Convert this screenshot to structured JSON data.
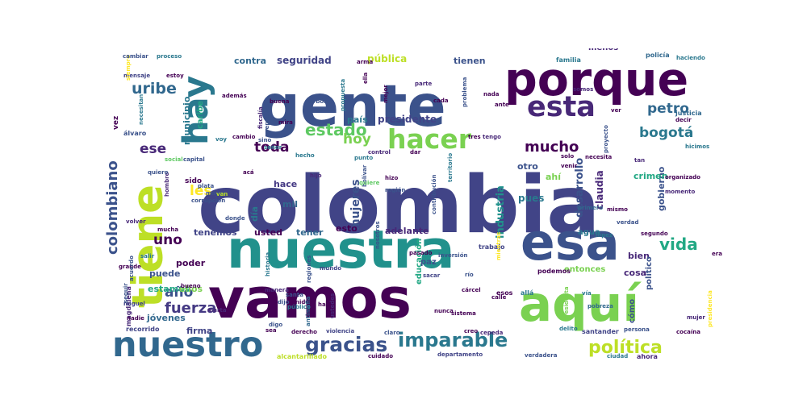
{
  "chart_data": {
    "type": "wordcloud",
    "title": "",
    "palette": "viridis",
    "words": [
      {
        "text": "colombia",
        "weight": 100,
        "color": "#414487"
      },
      {
        "text": "gente",
        "weight": 72,
        "color": "#3b528b"
      },
      {
        "text": "vamos",
        "weight": 70,
        "color": "#440154"
      },
      {
        "text": "aquí",
        "weight": 62,
        "color": "#7ad151"
      },
      {
        "text": "nuestra",
        "weight": 66,
        "color": "#21918c"
      },
      {
        "text": "esa",
        "weight": 64,
        "color": "#3b528b"
      },
      {
        "text": "porque",
        "weight": 58,
        "color": "#440154"
      },
      {
        "text": "tiene",
        "weight": 54,
        "color": "#bddf26"
      },
      {
        "text": "hay",
        "weight": 44,
        "color": "#2a788e"
      },
      {
        "text": "nuestro",
        "weight": 44,
        "color": "#31688e"
      },
      {
        "text": "esta",
        "weight": 36,
        "color": "#482878"
      },
      {
        "text": "hacer",
        "weight": 34,
        "color": "#7ad151"
      },
      {
        "text": "gracias",
        "weight": 26,
        "color": "#3b528b"
      },
      {
        "text": "imparable",
        "weight": 24,
        "color": "#2a788e"
      },
      {
        "text": "política",
        "weight": 22,
        "color": "#bddf26"
      },
      {
        "text": "estado",
        "weight": 20,
        "color": "#5ec962"
      },
      {
        "text": "vida",
        "weight": 20,
        "color": "#22a884"
      },
      {
        "text": "uribe",
        "weight": 19,
        "color": "#31688e"
      },
      {
        "text": "colombiano",
        "weight": 18,
        "color": "#3b528b"
      },
      {
        "text": "mucho",
        "weight": 18,
        "color": "#440154"
      },
      {
        "text": "bogotá",
        "weight": 17,
        "color": "#2a788e"
      },
      {
        "text": "petro",
        "weight": 17,
        "color": "#31688e"
      },
      {
        "text": "hoy",
        "weight": 17,
        "color": "#7ad151"
      },
      {
        "text": "toda",
        "weight": 17,
        "color": "#440154"
      },
      {
        "text": "ese",
        "weight": 17,
        "color": "#482878"
      },
      {
        "text": "fuerza",
        "weight": 18,
        "color": "#443983"
      },
      {
        "text": "año",
        "weight": 17,
        "color": "#3b528b"
      },
      {
        "text": "uno",
        "weight": 17,
        "color": "#440154"
      },
      {
        "text": "les",
        "weight": 17,
        "color": "#fde725"
      },
      {
        "text": "mujeres",
        "weight": 14,
        "color": "#3b528b"
      },
      {
        "text": "industria",
        "weight": 13,
        "color": "#21918c"
      },
      {
        "text": "desarrollo",
        "weight": 13,
        "color": "#3b528b"
      },
      {
        "text": "claudia",
        "weight": 12,
        "color": "#482878"
      },
      {
        "text": "gobierno",
        "weight": 11,
        "color": "#3b528b"
      },
      {
        "text": "crimen",
        "weight": 11,
        "color": "#22a884"
      },
      {
        "text": "seguridad",
        "weight": 12,
        "color": "#414487"
      },
      {
        "text": "pública",
        "weight": 12,
        "color": "#bddf26"
      },
      {
        "text": "contra",
        "weight": 11,
        "color": "#31688e"
      },
      {
        "text": "tienen",
        "weight": 11,
        "color": "#3b528b"
      },
      {
        "text": "menos",
        "weight": 10,
        "color": "#482878"
      },
      {
        "text": "presidente",
        "weight": 12,
        "color": "#414487"
      },
      {
        "text": "país",
        "weight": 11,
        "color": "#2a788e"
      },
      {
        "text": "municipio",
        "weight": 11,
        "color": "#2a788e"
      },
      {
        "text": "caribe",
        "weight": 10,
        "color": "#22a884"
      },
      {
        "text": "otro",
        "weight": 11,
        "color": "#3b528b"
      },
      {
        "text": "ahí",
        "weight": 11,
        "color": "#7ad151"
      },
      {
        "text": "pues",
        "weight": 12,
        "color": "#2a788e"
      },
      {
        "text": "hace",
        "weight": 11,
        "color": "#443983"
      },
      {
        "text": "mil",
        "weight": 11,
        "color": "#31688e"
      },
      {
        "text": "día",
        "weight": 11,
        "color": "#2a788e"
      },
      {
        "text": "tenemos",
        "weight": 11,
        "color": "#414487"
      },
      {
        "text": "usted",
        "weight": 11,
        "color": "#440154"
      },
      {
        "text": "tener",
        "weight": 11,
        "color": "#31688e"
      },
      {
        "text": "esto",
        "weight": 11,
        "color": "#440154"
      },
      {
        "text": "adelante",
        "weight": 11,
        "color": "#482878"
      },
      {
        "text": "agua",
        "weight": 10,
        "color": "#2a788e"
      },
      {
        "text": "bien",
        "weight": 11,
        "color": "#482878"
      },
      {
        "text": "político",
        "weight": 10,
        "color": "#3b528b"
      },
      {
        "text": "cosa",
        "weight": 11,
        "color": "#482878"
      },
      {
        "text": "entonces",
        "weight": 10,
        "color": "#7ad151"
      },
      {
        "text": "cómo",
        "weight": 10,
        "color": "#3b528b"
      },
      {
        "text": "poder",
        "weight": 11,
        "color": "#440154"
      },
      {
        "text": "puede",
        "weight": 11,
        "color": "#3b528b"
      },
      {
        "text": "estamos",
        "weight": 11,
        "color": "#22a884"
      },
      {
        "text": "ellos",
        "weight": 11,
        "color": "#7ad151"
      },
      {
        "text": "jóvenes",
        "weight": 11,
        "color": "#31688e"
      },
      {
        "text": "firma",
        "weight": 11,
        "color": "#414487"
      },
      {
        "text": "recorrido",
        "weight": 8,
        "color": "#414487"
      },
      {
        "text": "paz",
        "weight": 10,
        "color": "#3b528b"
      },
      {
        "text": "educación",
        "weight": 10,
        "color": "#22a884"
      },
      {
        "text": "sido",
        "weight": 9,
        "color": "#440154"
      },
      {
        "text": "magdalena",
        "weight": 8,
        "color": "#482878"
      },
      {
        "text": "vez",
        "weight": 9,
        "color": "#440154"
      },
      {
        "text": "álvaro",
        "weight": 8,
        "color": "#3b528b"
      },
      {
        "text": "mensaje",
        "weight": 7,
        "color": "#414487"
      },
      {
        "text": "siempre",
        "weight": 7,
        "color": "#fde725"
      },
      {
        "text": "necesitan",
        "weight": 7,
        "color": "#2a788e"
      },
      {
        "text": "cambiar",
        "weight": 7,
        "color": "#3b528b"
      },
      {
        "text": "proceso",
        "weight": 7,
        "color": "#2a788e"
      },
      {
        "text": "estoy",
        "weight": 7,
        "color": "#440154"
      },
      {
        "text": "además",
        "weight": 7,
        "color": "#440154"
      },
      {
        "text": "familia",
        "weight": 8,
        "color": "#2a788e"
      },
      {
        "text": "policía",
        "weight": 8,
        "color": "#31688e"
      },
      {
        "text": "haciendo",
        "weight": 7,
        "color": "#2a788e"
      },
      {
        "text": "justicia",
        "weight": 8,
        "color": "#31688e"
      },
      {
        "text": "decir",
        "weight": 7,
        "color": "#440154"
      },
      {
        "text": "ver",
        "weight": 7,
        "color": "#440154"
      },
      {
        "text": "hicimos",
        "weight": 7,
        "color": "#2a788e"
      },
      {
        "text": "organizado",
        "weight": 7,
        "color": "#440154"
      },
      {
        "text": "momento",
        "weight": 7,
        "color": "#482878"
      },
      {
        "text": "primero",
        "weight": 7,
        "color": "#31688e"
      },
      {
        "text": "mismo",
        "weight": 7,
        "color": "#440154"
      },
      {
        "text": "segundo",
        "weight": 7,
        "color": "#440154"
      },
      {
        "text": "santander",
        "weight": 8,
        "color": "#414487"
      },
      {
        "text": "persona",
        "weight": 7,
        "color": "#3b528b"
      },
      {
        "text": "cocaína",
        "weight": 7,
        "color": "#440154"
      },
      {
        "text": "ciudad",
        "weight": 7,
        "color": "#2a788e"
      },
      {
        "text": "ahora",
        "weight": 8,
        "color": "#482878"
      },
      {
        "text": "verdadera",
        "weight": 7,
        "color": "#3b528b"
      },
      {
        "text": "departamento",
        "weight": 7,
        "color": "#414487"
      },
      {
        "text": "cuidado",
        "weight": 7,
        "color": "#440154"
      },
      {
        "text": "alcantarillado",
        "weight": 8,
        "color": "#bddf26"
      },
      {
        "text": "cepeda",
        "weight": 7,
        "color": "#482878"
      },
      {
        "text": "creo",
        "weight": 7,
        "color": "#440154"
      },
      {
        "text": "claro",
        "weight": 7,
        "color": "#3b528b"
      },
      {
        "text": "violencia",
        "weight": 7,
        "color": "#414487"
      },
      {
        "text": "derecho",
        "weight": 7,
        "color": "#440154"
      },
      {
        "text": "sistema",
        "weight": 7,
        "color": "#440154"
      },
      {
        "text": "esos",
        "weight": 8,
        "color": "#440154"
      },
      {
        "text": "allá",
        "weight": 8,
        "color": "#2a788e"
      },
      {
        "text": "podemos",
        "weight": 8,
        "color": "#440154"
      },
      {
        "text": "vía",
        "weight": 7,
        "color": "#2a788e"
      },
      {
        "text": "pobreza",
        "weight": 7,
        "color": "#31688e"
      },
      {
        "text": "delito",
        "weight": 7,
        "color": "#2a788e"
      },
      {
        "text": "mujer",
        "weight": 7,
        "color": "#482878"
      },
      {
        "text": "trabajo",
        "weight": 8,
        "color": "#414487"
      },
      {
        "text": "inversión",
        "weight": 7,
        "color": "#3b528b"
      },
      {
        "text": "pasado",
        "weight": 7,
        "color": "#440154"
      },
      {
        "text": "sacar",
        "weight": 7,
        "color": "#414487"
      },
      {
        "text": "río",
        "weight": 7,
        "color": "#3b528b"
      },
      {
        "text": "cárcel",
        "weight": 7,
        "color": "#440154"
      },
      {
        "text": "calle",
        "weight": 7,
        "color": "#440154"
      },
      {
        "text": "mundo",
        "weight": 7,
        "color": "#414487"
      },
      {
        "text": "nosotros",
        "weight": 7,
        "color": "#3b528b"
      },
      {
        "text": "regiones",
        "weight": 7,
        "color": "#3b528b"
      },
      {
        "text": "manera",
        "weight": 7,
        "color": "#482878"
      },
      {
        "text": "bueno",
        "weight": 7,
        "color": "#440154"
      },
      {
        "text": "miguel",
        "weight": 7,
        "color": "#414487"
      },
      {
        "text": "marta",
        "weight": 7,
        "color": "#482878"
      },
      {
        "text": "nadie",
        "weight": 7,
        "color": "#440154"
      },
      {
        "text": "mucha",
        "weight": 7,
        "color": "#440154"
      },
      {
        "text": "volver",
        "weight": 7,
        "color": "#482878"
      },
      {
        "text": "donde",
        "weight": 7,
        "color": "#3b528b"
      },
      {
        "text": "corrupción",
        "weight": 7,
        "color": "#3b528b"
      },
      {
        "text": "mayor",
        "weight": 7,
        "color": "#3b528b"
      },
      {
        "text": "plata",
        "weight": 7,
        "color": "#3b528b"
      },
      {
        "text": "hombre",
        "weight": 7,
        "color": "#482878"
      },
      {
        "text": "quiero",
        "weight": 7,
        "color": "#3b528b"
      },
      {
        "text": "acá",
        "weight": 7,
        "color": "#440154"
      },
      {
        "text": "señor",
        "weight": 7,
        "color": "#2a788e"
      },
      {
        "text": "hijo",
        "weight": 7,
        "color": "#482878"
      },
      {
        "text": "hecho",
        "weight": 7,
        "color": "#2a788e"
      },
      {
        "text": "capital",
        "weight": 7,
        "color": "#3b528b"
      },
      {
        "text": "social",
        "weight": 7,
        "color": "#5ec962"
      },
      {
        "text": "región",
        "weight": 7,
        "color": "#3b528b"
      },
      {
        "text": "bolívar",
        "weight": 7,
        "color": "#3b528b"
      },
      {
        "text": "hizo",
        "weight": 7,
        "color": "#440154"
      },
      {
        "text": "quiere",
        "weight": 7,
        "color": "#5ec962"
      },
      {
        "text": "control",
        "weight": 7,
        "color": "#482878"
      },
      {
        "text": "dar",
        "weight": 7,
        "color": "#440154"
      },
      {
        "text": "punto",
        "weight": 7,
        "color": "#2a788e"
      },
      {
        "text": "tres",
        "weight": 7,
        "color": "#440154"
      },
      {
        "text": "tengo",
        "weight": 7,
        "color": "#482878"
      },
      {
        "text": "solo",
        "weight": 7,
        "color": "#440154"
      },
      {
        "text": "venir",
        "weight": 7,
        "color": "#440154"
      },
      {
        "text": "verdad",
        "weight": 7,
        "color": "#3b528b"
      },
      {
        "text": "tan",
        "weight": 7,
        "color": "#482878"
      },
      {
        "text": "buena",
        "weight": 7,
        "color": "#440154"
      },
      {
        "text": "carbón",
        "weight": 7,
        "color": "#3b528b"
      },
      {
        "text": "cada",
        "weight": 7,
        "color": "#440154"
      },
      {
        "text": "ante",
        "weight": 7,
        "color": "#440154"
      },
      {
        "text": "nada",
        "weight": 7,
        "color": "#440154"
      },
      {
        "text": "somos",
        "weight": 7,
        "color": "#482878"
      },
      {
        "text": "parte",
        "weight": 7,
        "color": "#482878"
      },
      {
        "text": "mira",
        "weight": 7,
        "color": "#440154"
      },
      {
        "text": "sino",
        "weight": 7,
        "color": "#3b528b"
      },
      {
        "text": "cambio",
        "weight": 7,
        "color": "#440154"
      },
      {
        "text": "voy",
        "weight": 7,
        "color": "#2a788e"
      },
      {
        "text": "fiscalía",
        "weight": 7,
        "color": "#482878"
      },
      {
        "text": "república",
        "weight": 7,
        "color": "#3b528b"
      },
      {
        "text": "mejor",
        "weight": 7,
        "color": "#440154"
      },
      {
        "text": "propuesta",
        "weight": 7,
        "color": "#2a788e"
      },
      {
        "text": "ella",
        "weight": 7,
        "color": "#440154"
      },
      {
        "text": "arma",
        "weight": 7,
        "color": "#440154"
      },
      {
        "text": "problema",
        "weight": 7,
        "color": "#3b528b"
      },
      {
        "text": "necesita",
        "weight": 7,
        "color": "#440154"
      },
      {
        "text": "proyecto",
        "weight": 7,
        "color": "#3b528b"
      },
      {
        "text": "contribución",
        "weight": 7,
        "color": "#3b528b"
      },
      {
        "text": "territorio",
        "weight": 7,
        "color": "#2a788e"
      },
      {
        "text": "mientras",
        "weight": 7,
        "color": "#fde725"
      },
      {
        "text": "presidenta",
        "weight": 7,
        "color": "#7ad151"
      },
      {
        "text": "presidencia",
        "weight": 7,
        "color": "#fde725"
      },
      {
        "text": "dijo",
        "weight": 7,
        "color": "#3b528b"
      },
      {
        "text": "unidos",
        "weight": 7,
        "color": "#440154"
      },
      {
        "text": "santa",
        "weight": 7,
        "color": "#3b528b"
      },
      {
        "text": "público",
        "weight": 7,
        "color": "#2a788e"
      },
      {
        "text": "antimafia",
        "weight": 7,
        "color": "#31688e"
      },
      {
        "text": "ustedes",
        "weight": 7,
        "color": "#482878"
      },
      {
        "text": "historia",
        "weight": 7,
        "color": "#2a788e"
      },
      {
        "text": "han",
        "weight": 7,
        "color": "#440154"
      },
      {
        "text": "nunca",
        "weight": 7,
        "color": "#440154"
      },
      {
        "text": "sea",
        "weight": 7,
        "color": "#440154"
      },
      {
        "text": "digo",
        "weight": 7,
        "color": "#3b528b"
      },
      {
        "text": "grande",
        "weight": 7,
        "color": "#440154"
      },
      {
        "text": "acuerdo",
        "weight": 7,
        "color": "#3b528b"
      },
      {
        "text": "salir",
        "weight": 7,
        "color": "#2a788e"
      },
      {
        "text": "seguir",
        "weight": 7,
        "color": "#3b528b"
      },
      {
        "text": "van",
        "weight": 7,
        "color": "#bddf26"
      },
      {
        "text": "era",
        "weight": 7,
        "color": "#440154"
      },
      {
        "text": "lópez",
        "weight": 7,
        "color": "#2a788e"
      }
    ]
  }
}
